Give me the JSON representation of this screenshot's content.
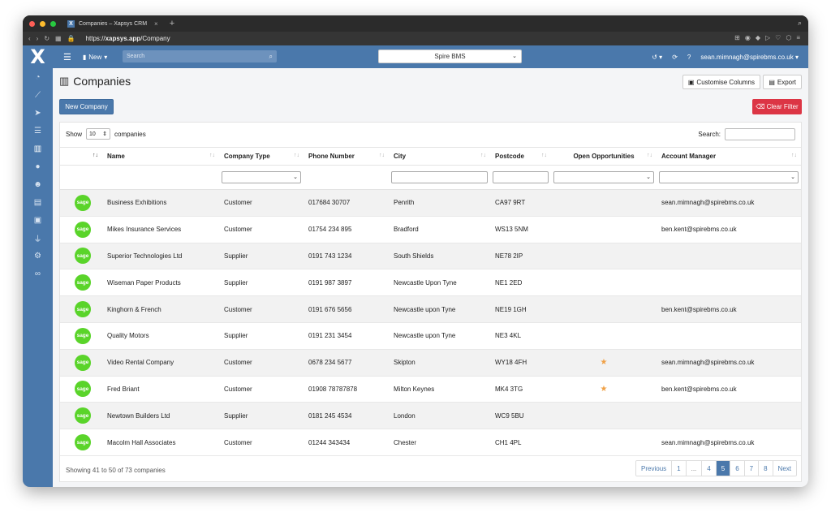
{
  "browser": {
    "tab_title": "Companies – Xapsys CRM",
    "tab_favicon": "X",
    "url_prefix": "https://",
    "url_host": "xapsys.app",
    "url_path": "/Company"
  },
  "topnav": {
    "new_label": "New",
    "search_placeholder": "Search",
    "company_selected": "Spire BMS",
    "user_email": "sean.mimnagh@spirebms.co.uk"
  },
  "page": {
    "title": "Companies",
    "customise_label": "Customise Columns",
    "export_label": "Export",
    "new_company_label": "New Company",
    "clear_filter_label": "Clear Filter"
  },
  "table": {
    "show_label": "Show",
    "page_length": "10",
    "entries_label": "companies",
    "search_label": "Search:",
    "columns": [
      "Name",
      "Company Type",
      "Phone Number",
      "City",
      "Postcode",
      "Open Opportunities",
      "Account Manager"
    ],
    "rows": [
      {
        "logo": "sage",
        "name": "Business Exhibitions",
        "type": "Customer",
        "phone": "017684 30707",
        "city": "Penrith",
        "postcode": "CA97 9RT",
        "opps": "",
        "manager": "sean.mimnagh@spirebms.co.uk"
      },
      {
        "logo": "sage",
        "name": "Mikes Insurance Services",
        "type": "Customer",
        "phone": "01754 234 895",
        "city": "Bradford",
        "postcode": "WS13 5NM",
        "opps": "",
        "manager": "ben.kent@spirebms.co.uk"
      },
      {
        "logo": "sage",
        "name": "Superior Technologies Ltd",
        "type": "Supplier",
        "phone": "0191 743 1234",
        "city": "South Shields",
        "postcode": "NE78 2IP",
        "opps": "",
        "manager": ""
      },
      {
        "logo": "sage",
        "name": "Wiseman Paper Products",
        "type": "Supplier",
        "phone": "0191 987 3897",
        "city": "Newcastle Upon Tyne",
        "postcode": "NE1 2ED",
        "opps": "",
        "manager": ""
      },
      {
        "logo": "sage",
        "name": "Kinghorn & French",
        "type": "Customer",
        "phone": "0191 676 5656",
        "city": "Newcastle upon Tyne",
        "postcode": "NE19 1GH",
        "opps": "",
        "manager": "ben.kent@spirebms.co.uk"
      },
      {
        "logo": "sage",
        "name": "Quality Motors",
        "type": "Supplier",
        "phone": "0191 231 3454",
        "city": "Newcastle upon Tyne",
        "postcode": "NE3 4KL",
        "opps": "",
        "manager": ""
      },
      {
        "logo": "sage",
        "name": "Video Rental Company",
        "type": "Customer",
        "phone": "0678 234 5677",
        "city": "Skipton",
        "postcode": "WY18 4FH",
        "opps": "★",
        "manager": "sean.mimnagh@spirebms.co.uk"
      },
      {
        "logo": "sage",
        "name": "Fred Briant",
        "type": "Customer",
        "phone": "01908 78787878",
        "city": "Milton Keynes",
        "postcode": "MK4 3TG",
        "opps": "★",
        "manager": "ben.kent@spirebms.co.uk"
      },
      {
        "logo": "sage",
        "name": "Newtown Builders Ltd",
        "type": "Supplier",
        "phone": "0181 245 4534",
        "city": "London",
        "postcode": "WC9 5BU",
        "opps": "",
        "manager": ""
      },
      {
        "logo": "sage",
        "name": "Macolm Hall Associates",
        "type": "Customer",
        "phone": "01244 343434",
        "city": "Chester",
        "postcode": "CH1 4PL",
        "opps": "",
        "manager": "sean.mimnagh@spirebms.co.uk"
      }
    ],
    "info": "Showing 41 to 50 of 73 companies"
  },
  "pagination": [
    "Previous",
    "1",
    "...",
    "4",
    "5",
    "6",
    "7",
    "8",
    "Next"
  ],
  "pagination_active": "5",
  "colors": {
    "primary": "#4a78ab",
    "danger": "#dc3545",
    "sage": "#5ad42a",
    "star": "#f0a045"
  }
}
